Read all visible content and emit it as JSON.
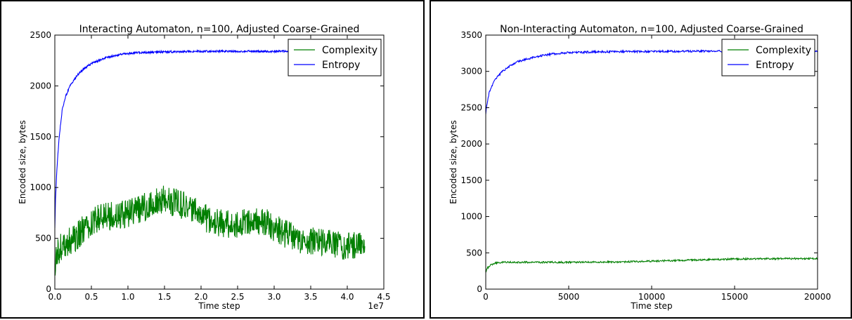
{
  "chart_data": [
    {
      "type": "line",
      "title": "Interacting Automaton, n=100, Adjusted Coarse-Grained",
      "xlabel": "Time step",
      "ylabel": "Encoded size, bytes",
      "x_multiplier_label": "1e7",
      "xlim": [
        0,
        4.5
      ],
      "ylim": [
        0,
        2500
      ],
      "xticks": [
        0.0,
        0.5,
        1.0,
        1.5,
        2.0,
        2.5,
        3.0,
        3.5,
        4.0,
        4.5
      ],
      "xtick_labels": [
        "0.0",
        "0.5",
        "1.0",
        "1.5",
        "2.0",
        "2.5",
        "3.0",
        "3.5",
        "4.0",
        "4.5"
      ],
      "yticks": [
        0,
        500,
        1000,
        1500,
        2000,
        2500
      ],
      "ytick_labels": [
        "0",
        "500",
        "1000",
        "1500",
        "2000",
        "2500"
      ],
      "legend_position": "upper-right",
      "series": [
        {
          "name": "Complexity",
          "color": "#007f00",
          "x": [
            0,
            0.05,
            0.1,
            0.2,
            0.3,
            0.4,
            0.5,
            0.6,
            0.8,
            1.0,
            1.2,
            1.4,
            1.5,
            1.7,
            1.9,
            2.1,
            2.3,
            2.5,
            2.7,
            2.9,
            3.1,
            3.3,
            3.5,
            3.7,
            3.9,
            4.1,
            4.2,
            4.24
          ],
          "values": [
            250,
            380,
            420,
            470,
            520,
            600,
            650,
            700,
            720,
            740,
            800,
            870,
            880,
            840,
            780,
            680,
            640,
            630,
            690,
            650,
            560,
            500,
            470,
            450,
            430,
            430,
            480,
            470
          ],
          "noise": 140,
          "points": 900
        },
        {
          "name": "Entropy",
          "color": "#0000ff",
          "x": [
            0,
            0.01,
            0.03,
            0.06,
            0.1,
            0.15,
            0.2,
            0.3,
            0.4,
            0.5,
            0.7,
            0.9,
            1.1,
            1.5,
            2.0,
            3.0,
            4.24
          ],
          "values": [
            600,
            900,
            1200,
            1500,
            1760,
            1900,
            1990,
            2100,
            2170,
            2220,
            2280,
            2310,
            2325,
            2335,
            2340,
            2340,
            2345
          ],
          "noise": 10,
          "points": 900
        }
      ]
    },
    {
      "type": "line",
      "title": "Non-Interacting Automaton, n=100, Adjusted Coarse-Grained",
      "xlabel": "Time step",
      "ylabel": "Encoded size, bytes",
      "xlim": [
        0,
        20000
      ],
      "ylim": [
        0,
        3500
      ],
      "xticks": [
        0,
        5000,
        10000,
        15000,
        20000
      ],
      "xtick_labels": [
        "0",
        "5000",
        "10000",
        "15000",
        "20000"
      ],
      "yticks": [
        0,
        500,
        1000,
        1500,
        2000,
        2500,
        3000,
        3500
      ],
      "ytick_labels": [
        "0",
        "500",
        "1000",
        "1500",
        "2000",
        "2500",
        "3000",
        "3500"
      ],
      "legend_position": "upper-right",
      "series": [
        {
          "name": "Complexity",
          "color": "#007f00",
          "x": [
            0,
            100,
            300,
            600,
            1000,
            2000,
            5000,
            8000,
            10000,
            13000,
            15000,
            18000,
            20000
          ],
          "values": [
            240,
            290,
            330,
            360,
            370,
            370,
            370,
            375,
            385,
            405,
            415,
            420,
            420
          ],
          "noise": 12,
          "points": 700
        },
        {
          "name": "Entropy",
          "color": "#0000ff",
          "x": [
            0,
            50,
            200,
            500,
            1000,
            1500,
            2000,
            3000,
            4000,
            5000,
            7000,
            10000,
            15000,
            20000
          ],
          "values": [
            2420,
            2520,
            2700,
            2870,
            3000,
            3080,
            3140,
            3200,
            3240,
            3260,
            3270,
            3275,
            3280,
            3280
          ],
          "noise": 14,
          "points": 700
        }
      ]
    }
  ]
}
